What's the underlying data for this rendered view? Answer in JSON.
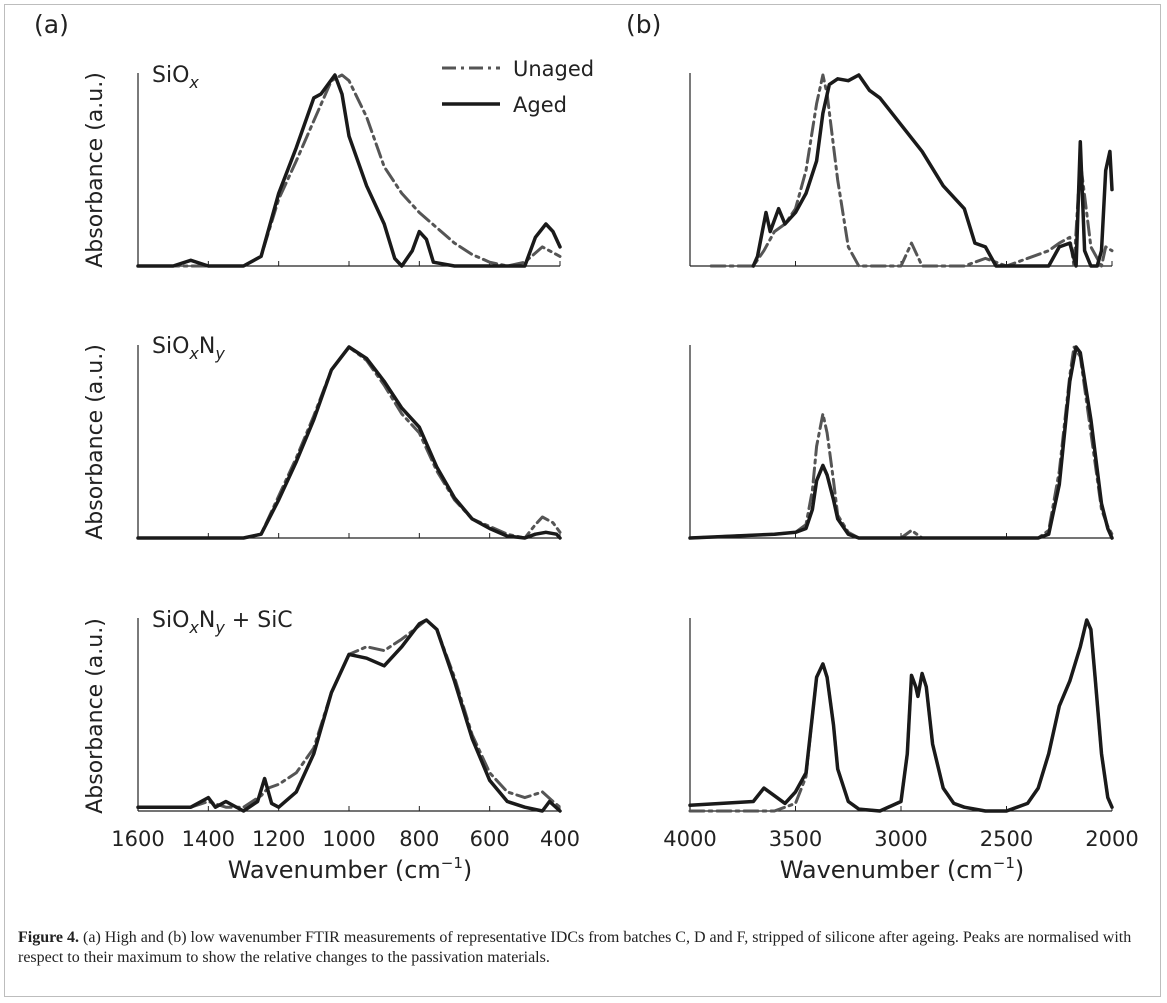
{
  "panel_labels": {
    "a": "(a)",
    "b": "(b)"
  },
  "legend": {
    "unaged": "Unaged",
    "aged": "Aged"
  },
  "row_labels": [
    {
      "base": "SiO",
      "sub1": "x",
      "mid": "",
      "sub2": "",
      "tail": ""
    },
    {
      "base": "SiO",
      "sub1": "x",
      "mid": "N",
      "sub2": "y",
      "tail": ""
    },
    {
      "base": "SiO",
      "sub1": "x",
      "mid": "N",
      "sub2": "y",
      "tail": " + SiC"
    }
  ],
  "ylabel": "Absorbance (a.u.)",
  "xlabel": {
    "base": "Wavenumber (cm",
    "sup": "−1",
    "close": ")"
  },
  "caption": {
    "label": "Figure 4.",
    "text": "(a) High and (b) low wavenumber FTIR measurements of representative IDCs from batches C, D and F, stripped of silicone after ageing. Peaks are normalised with respect to their maximum to show the relative changes to the passivation materials."
  },
  "colors": {
    "aged": "#1a1a1a",
    "unaged": "#555555"
  },
  "chart_data": [
    {
      "type": "line",
      "panel": "a",
      "row": 0,
      "xlim": [
        1600,
        400
      ],
      "ylim": [
        0,
        1
      ],
      "xticks": [
        1600,
        1400,
        1200,
        1000,
        800,
        600,
        400
      ],
      "series": [
        {
          "name": "Unaged",
          "style": "dashdot",
          "x": [
            1600,
            1450,
            1300,
            1250,
            1200,
            1150,
            1100,
            1050,
            1020,
            1000,
            950,
            900,
            850,
            800,
            750,
            700,
            650,
            600,
            550,
            500,
            450,
            400
          ],
          "y": [
            0.0,
            0.0,
            0.0,
            0.05,
            0.35,
            0.55,
            0.76,
            0.97,
            1.0,
            0.97,
            0.78,
            0.52,
            0.38,
            0.28,
            0.2,
            0.12,
            0.06,
            0.02,
            0.0,
            0.02,
            0.1,
            0.05
          ]
        },
        {
          "name": "Aged",
          "style": "solid",
          "x": [
            1600,
            1500,
            1450,
            1400,
            1300,
            1250,
            1200,
            1150,
            1100,
            1080,
            1040,
            1020,
            1000,
            950,
            900,
            870,
            850,
            820,
            800,
            780,
            760,
            700,
            600,
            500,
            470,
            440,
            420,
            400
          ],
          "y": [
            0.0,
            0.0,
            0.03,
            0.0,
            0.0,
            0.05,
            0.38,
            0.62,
            0.88,
            0.9,
            1.0,
            0.9,
            0.68,
            0.42,
            0.22,
            0.04,
            0.0,
            0.08,
            0.18,
            0.14,
            0.02,
            0.0,
            0.0,
            0.0,
            0.15,
            0.22,
            0.18,
            0.1
          ]
        }
      ]
    },
    {
      "type": "line",
      "panel": "b",
      "row": 0,
      "xlim": [
        4000,
        2000
      ],
      "ylim": [
        0,
        1
      ],
      "xticks": [
        4000,
        3500,
        3000,
        2500,
        2000
      ],
      "series": [
        {
          "name": "Unaged",
          "style": "dashdot",
          "x": [
            3900,
            3800,
            3700,
            3650,
            3600,
            3550,
            3500,
            3450,
            3400,
            3370,
            3350,
            3300,
            3250,
            3200,
            3000,
            2950,
            2900,
            2800,
            2700,
            2600,
            2500,
            2300,
            2250,
            2200,
            2180,
            2150,
            2100,
            2050,
            2030,
            2000
          ],
          "y": [
            0.0,
            0.0,
            0.0,
            0.08,
            0.18,
            0.22,
            0.3,
            0.5,
            0.85,
            1.0,
            0.9,
            0.45,
            0.1,
            0.0,
            0.0,
            0.12,
            0.0,
            0.0,
            0.0,
            0.04,
            0.0,
            0.08,
            0.12,
            0.15,
            0.0,
            0.55,
            0.1,
            0.0,
            0.1,
            0.08
          ]
        },
        {
          "name": "Aged",
          "style": "solid",
          "x": [
            3700,
            3680,
            3640,
            3620,
            3580,
            3550,
            3500,
            3450,
            3400,
            3370,
            3340,
            3300,
            3250,
            3200,
            3150,
            3100,
            3000,
            2900,
            2800,
            2700,
            2650,
            2600,
            2550,
            2500,
            2300,
            2250,
            2200,
            2170,
            2150,
            2130,
            2100,
            2070,
            2050,
            2030,
            2010,
            2000
          ],
          "y": [
            0.0,
            0.05,
            0.28,
            0.18,
            0.3,
            0.22,
            0.28,
            0.38,
            0.55,
            0.8,
            0.95,
            0.98,
            0.97,
            1.0,
            0.92,
            0.88,
            0.74,
            0.6,
            0.42,
            0.3,
            0.12,
            0.1,
            0.0,
            0.0,
            0.0,
            0.1,
            0.12,
            0.0,
            0.65,
            0.08,
            0.0,
            0.0,
            0.08,
            0.5,
            0.6,
            0.4
          ]
        }
      ]
    },
    {
      "type": "line",
      "panel": "a",
      "row": 1,
      "xlim": [
        1600,
        400
      ],
      "ylim": [
        0,
        1
      ],
      "xticks": [
        1600,
        1400,
        1200,
        1000,
        800,
        600,
        400
      ],
      "series": [
        {
          "name": "Unaged",
          "style": "dashdot",
          "x": [
            1600,
            1300,
            1250,
            1200,
            1150,
            1100,
            1050,
            1000,
            950,
            900,
            850,
            800,
            750,
            700,
            650,
            600,
            550,
            500,
            470,
            450,
            420,
            400
          ],
          "y": [
            0.0,
            0.0,
            0.02,
            0.22,
            0.42,
            0.64,
            0.88,
            1.0,
            0.93,
            0.8,
            0.65,
            0.55,
            0.35,
            0.2,
            0.1,
            0.06,
            0.02,
            0.0,
            0.07,
            0.11,
            0.08,
            0.03
          ]
        },
        {
          "name": "Aged",
          "style": "solid",
          "x": [
            1600,
            1300,
            1250,
            1200,
            1150,
            1100,
            1050,
            1000,
            950,
            900,
            850,
            800,
            750,
            700,
            650,
            600,
            550,
            500,
            470,
            440,
            410,
            400
          ],
          "y": [
            0.0,
            0.0,
            0.02,
            0.2,
            0.4,
            0.62,
            0.88,
            1.0,
            0.94,
            0.82,
            0.68,
            0.58,
            0.37,
            0.21,
            0.1,
            0.05,
            0.01,
            0.0,
            0.02,
            0.03,
            0.02,
            0.0
          ]
        }
      ]
    },
    {
      "type": "line",
      "panel": "b",
      "row": 1,
      "xlim": [
        4000,
        2000
      ],
      "ylim": [
        0,
        1
      ],
      "xticks": [
        4000,
        3500,
        3000,
        2500,
        2000
      ],
      "series": [
        {
          "name": "Unaged",
          "style": "dashdot",
          "x": [
            4000,
            3600,
            3500,
            3450,
            3420,
            3400,
            3370,
            3350,
            3320,
            3300,
            3250,
            3200,
            3000,
            2950,
            2900,
            2600,
            2350,
            2300,
            2250,
            2200,
            2180,
            2150,
            2100,
            2050,
            2020,
            2000
          ],
          "y": [
            0.0,
            0.02,
            0.03,
            0.07,
            0.25,
            0.48,
            0.65,
            0.55,
            0.3,
            0.12,
            0.03,
            0.0,
            0.0,
            0.04,
            0.0,
            0.0,
            0.0,
            0.04,
            0.35,
            0.85,
            1.0,
            0.95,
            0.55,
            0.15,
            0.06,
            0.02
          ]
        },
        {
          "name": "Aged",
          "style": "solid",
          "x": [
            4000,
            3600,
            3500,
            3450,
            3420,
            3400,
            3370,
            3350,
            3320,
            3300,
            3250,
            3200,
            3000,
            2600,
            2350,
            2300,
            2250,
            2200,
            2170,
            2150,
            2100,
            2050,
            2020,
            2000
          ],
          "y": [
            0.0,
            0.02,
            0.03,
            0.05,
            0.15,
            0.3,
            0.38,
            0.33,
            0.2,
            0.1,
            0.02,
            0.0,
            0.0,
            0.0,
            0.0,
            0.02,
            0.28,
            0.82,
            1.0,
            0.97,
            0.62,
            0.18,
            0.05,
            0.0
          ]
        }
      ]
    },
    {
      "type": "line",
      "panel": "a",
      "row": 2,
      "xlim": [
        1600,
        400
      ],
      "ylim": [
        0,
        1
      ],
      "xticks": [
        1600,
        1400,
        1200,
        1000,
        800,
        600,
        400
      ],
      "series": [
        {
          "name": "Unaged",
          "style": "dashdot",
          "x": [
            1600,
            1450,
            1400,
            1350,
            1300,
            1250,
            1230,
            1200,
            1150,
            1100,
            1050,
            1000,
            950,
            900,
            850,
            800,
            780,
            750,
            700,
            650,
            600,
            550,
            500,
            450,
            420,
            400
          ],
          "y": [
            0.02,
            0.02,
            0.05,
            0.02,
            0.02,
            0.08,
            0.12,
            0.14,
            0.2,
            0.33,
            0.62,
            0.82,
            0.86,
            0.84,
            0.9,
            0.97,
            1.0,
            0.95,
            0.7,
            0.4,
            0.2,
            0.1,
            0.07,
            0.1,
            0.05,
            0.02
          ]
        },
        {
          "name": "Aged",
          "style": "solid",
          "x": [
            1600,
            1450,
            1400,
            1380,
            1350,
            1300,
            1260,
            1240,
            1220,
            1200,
            1150,
            1100,
            1050,
            1000,
            950,
            900,
            850,
            800,
            780,
            750,
            700,
            650,
            600,
            550,
            500,
            450,
            430,
            400
          ],
          "y": [
            0.02,
            0.02,
            0.07,
            0.02,
            0.05,
            0.0,
            0.05,
            0.17,
            0.04,
            0.02,
            0.1,
            0.3,
            0.62,
            0.82,
            0.8,
            0.76,
            0.86,
            0.98,
            1.0,
            0.95,
            0.68,
            0.38,
            0.16,
            0.05,
            0.02,
            0.0,
            0.05,
            0.0
          ]
        }
      ]
    },
    {
      "type": "line",
      "panel": "b",
      "row": 2,
      "xlim": [
        4000,
        2000
      ],
      "ylim": [
        0,
        1
      ],
      "xticks": [
        4000,
        3500,
        3000,
        2500,
        2000
      ],
      "series": [
        {
          "name": "Unaged",
          "style": "dashdot",
          "x": [
            4000,
            3700,
            3650,
            3600,
            3550,
            3500,
            3450,
            3420,
            3400,
            3370,
            3350,
            3320,
            3300,
            3250,
            3200,
            3100,
            3000,
            2970,
            2950,
            2930,
            2920,
            2900,
            2880,
            2850,
            2800,
            2750,
            2700,
            2600,
            2500,
            2400,
            2350,
            2300,
            2250,
            2200,
            2150,
            2120,
            2100,
            2080,
            2050,
            2020,
            2000
          ],
          "y": [
            0.0,
            0.0,
            0.0,
            0.0,
            0.02,
            0.04,
            0.18,
            0.5,
            0.7,
            0.77,
            0.7,
            0.45,
            0.22,
            0.05,
            0.01,
            0.0,
            0.05,
            0.3,
            0.71,
            0.65,
            0.6,
            0.72,
            0.65,
            0.35,
            0.12,
            0.04,
            0.02,
            0.0,
            0.0,
            0.04,
            0.12,
            0.3,
            0.55,
            0.68,
            0.86,
            1.0,
            0.95,
            0.7,
            0.3,
            0.07,
            0.02
          ]
        },
        {
          "name": "Aged",
          "style": "solid",
          "x": [
            4000,
            3700,
            3650,
            3600,
            3550,
            3500,
            3450,
            3420,
            3400,
            3370,
            3350,
            3320,
            3300,
            3250,
            3200,
            3100,
            3000,
            2970,
            2950,
            2930,
            2920,
            2900,
            2880,
            2850,
            2800,
            2750,
            2700,
            2600,
            2500,
            2400,
            2350,
            2300,
            2250,
            2200,
            2150,
            2120,
            2100,
            2080,
            2050,
            2020,
            2000
          ],
          "y": [
            0.03,
            0.05,
            0.12,
            0.08,
            0.04,
            0.1,
            0.2,
            0.5,
            0.7,
            0.77,
            0.7,
            0.45,
            0.22,
            0.05,
            0.01,
            0.0,
            0.05,
            0.3,
            0.71,
            0.65,
            0.6,
            0.72,
            0.65,
            0.35,
            0.12,
            0.04,
            0.02,
            0.0,
            0.0,
            0.04,
            0.12,
            0.3,
            0.55,
            0.68,
            0.86,
            1.0,
            0.95,
            0.7,
            0.3,
            0.07,
            0.02
          ]
        }
      ]
    }
  ]
}
